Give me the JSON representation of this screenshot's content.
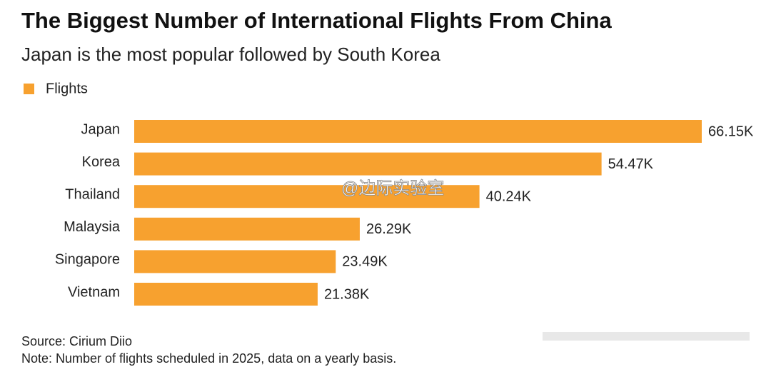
{
  "chart_data": {
    "type": "bar",
    "orientation": "horizontal",
    "title": "The Biggest Number of International Flights From China",
    "subtitle": "Japan is the most popular followed by South Korea",
    "categories": [
      "Japan",
      "Korea",
      "Thailand",
      "Malaysia",
      "Singapore",
      "Vietnam"
    ],
    "series": [
      {
        "name": "Flights",
        "color": "#f7a12f",
        "values": [
          66150,
          54470,
          40240,
          26290,
          23490,
          21380
        ],
        "value_labels": [
          "66.15K",
          "54.47K",
          "40.24K",
          "26.29K",
          "23.49K",
          "21.38K"
        ]
      }
    ],
    "legend": "top-left",
    "source": "Source: Cirium Diio",
    "note": "Note: Number of flights scheduled in 2025, data on a yearly basis.",
    "watermark": "@边际实验室"
  }
}
